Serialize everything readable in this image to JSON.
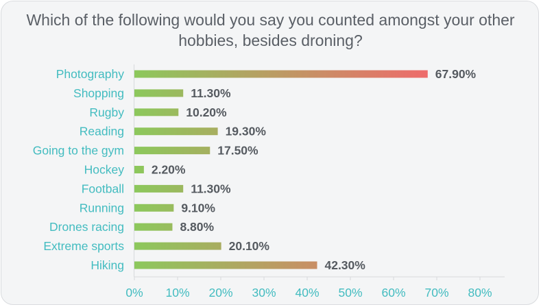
{
  "chart_data": {
    "type": "bar",
    "orientation": "horizontal",
    "title": "Which of the following would you say you counted amongst your other hobbies, besides droning?",
    "categories": [
      "Photography",
      "Shopping",
      "Rugby",
      "Reading",
      "Going to the gym",
      "Hockey",
      "Football",
      "Running",
      "Drones racing",
      "Extreme sports",
      "Hiking"
    ],
    "values": [
      67.9,
      11.3,
      10.2,
      19.3,
      17.5,
      2.2,
      11.3,
      9.1,
      8.8,
      20.1,
      42.3
    ],
    "value_labels": [
      "67.90%",
      "11.30%",
      "10.20%",
      "19.30%",
      "17.50%",
      "2.20%",
      "11.30%",
      "9.10%",
      "8.80%",
      "20.10%",
      "42.30%"
    ],
    "x_ticks": [
      "0%",
      "10%",
      "20%",
      "30%",
      "40%",
      "50%",
      "60%",
      "70%",
      "80%"
    ],
    "xlim": [
      0,
      80
    ],
    "grid": false,
    "legend": "none",
    "colors": {
      "bar_start": "#8cc85c",
      "bar_end": "#ee6b6b",
      "category_text": "#43bcc0",
      "value_text": "#555a60",
      "title_text": "#5a5f66"
    }
  }
}
